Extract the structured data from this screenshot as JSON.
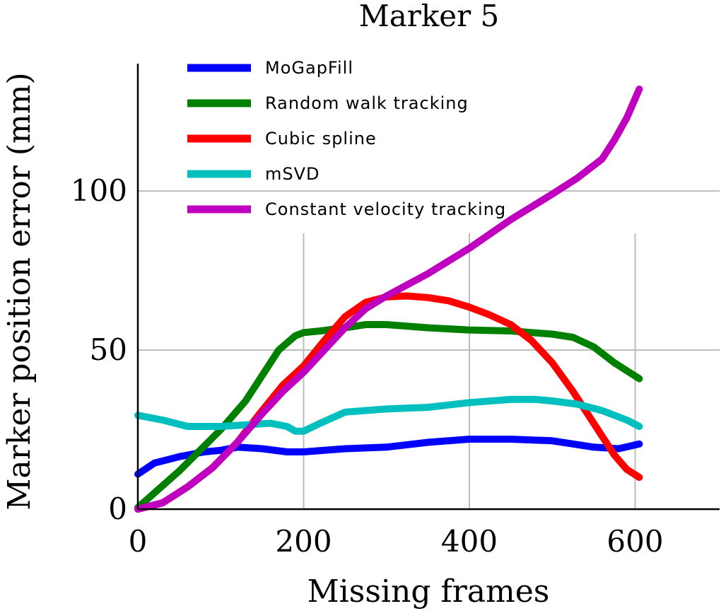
{
  "chart_data": {
    "type": "line",
    "title": "Marker 5",
    "xlabel": "Missing frames",
    "ylabel": "Marker position error (mm)",
    "xlim": [
      0,
      700
    ],
    "ylim": [
      0,
      140
    ],
    "xticks": [
      0,
      200,
      400,
      600
    ],
    "yticks": [
      0,
      50,
      100
    ],
    "xtick_labels": [
      "0",
      "200",
      "400",
      "600"
    ],
    "ytick_labels": [
      "0",
      "50",
      "100"
    ],
    "grid": true,
    "legend_position": "top-left",
    "series": [
      {
        "name": "MoGapFill",
        "color": "#0000ff",
        "x": [
          0,
          20,
          50,
          80,
          100,
          120,
          150,
          180,
          200,
          250,
          300,
          350,
          400,
          450,
          500,
          550,
          580,
          605
        ],
        "y": [
          11,
          14.5,
          16.5,
          18,
          18.5,
          19.5,
          19,
          18,
          18,
          19,
          19.5,
          21,
          22,
          22,
          21.5,
          19.5,
          19,
          20.5
        ]
      },
      {
        "name": "Random walk tracking",
        "color": "#008000",
        "x": [
          0,
          50,
          100,
          130,
          150,
          170,
          190,
          200,
          220,
          250,
          275,
          300,
          350,
          400,
          450,
          500,
          525,
          550,
          575,
          590,
          605
        ],
        "y": [
          0.5,
          12,
          25,
          34,
          42,
          50,
          54.5,
          55.5,
          56,
          57,
          58,
          58,
          57,
          56.3,
          56,
          55,
          54,
          51,
          46,
          43.5,
          41
        ]
      },
      {
        "name": "Cubic spline",
        "color": "#ff0000",
        "x": [
          0,
          30,
          60,
          90,
          120,
          150,
          175,
          200,
          225,
          250,
          275,
          300,
          325,
          350,
          375,
          400,
          425,
          450,
          475,
          500,
          525,
          550,
          575,
          590,
          605
        ],
        "y": [
          0,
          2,
          7,
          13,
          21,
          31,
          39,
          45,
          53,
          60.5,
          65,
          66.7,
          67,
          66.5,
          65.5,
          63.5,
          61,
          58,
          53,
          46,
          37,
          27,
          17,
          12.5,
          10
        ]
      },
      {
        "name": "mSVD",
        "color": "#00bfbf",
        "x": [
          0,
          30,
          60,
          100,
          130,
          160,
          180,
          190,
          200,
          220,
          250,
          275,
          300,
          350,
          400,
          450,
          480,
          500,
          530,
          560,
          590,
          605
        ],
        "y": [
          29.5,
          28,
          26,
          26,
          26.5,
          27,
          26,
          24.5,
          24.5,
          27,
          30.5,
          31,
          31.5,
          32,
          33.5,
          34.5,
          34.5,
          34,
          33,
          31,
          28,
          26
        ]
      },
      {
        "name": "Constant velocity tracking",
        "color": "#bf00bf",
        "x": [
          0,
          30,
          60,
          90,
          120,
          150,
          175,
          200,
          225,
          250,
          275,
          300,
          350,
          400,
          450,
          500,
          530,
          560,
          575,
          590,
          605
        ],
        "y": [
          0,
          2,
          7,
          13,
          21,
          30,
          37,
          43,
          50,
          57,
          63,
          67,
          74,
          82,
          91,
          99,
          104,
          110,
          116,
          123,
          132
        ]
      }
    ]
  }
}
